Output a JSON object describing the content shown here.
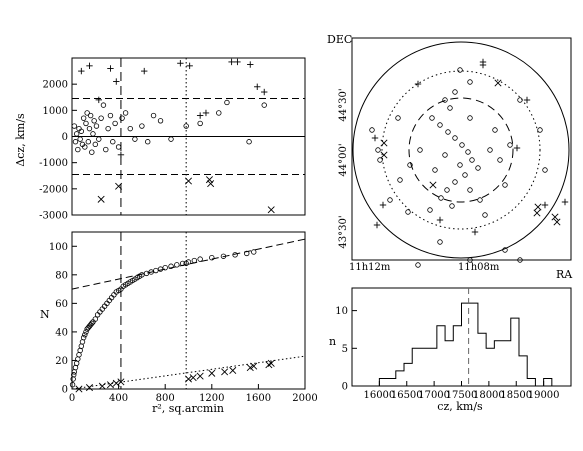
{
  "chart_data": [
    {
      "type": "scatter",
      "title": "",
      "xlabel": "",
      "ylabel": "Δcz, km/s",
      "xlim": [
        0,
        2000
      ],
      "ylim": [
        -3000,
        3000
      ],
      "yticks": [
        "2000",
        "1000",
        "0",
        "-1000",
        "-2000",
        "-3000"
      ],
      "hlines": {
        "solid": 0,
        "dashed": [
          1450,
          -1450
        ]
      },
      "vlines": {
        "dashed": 420,
        "dotted": 980
      },
      "series": [
        {
          "marker": "circle",
          "points": [
            [
              20,
              400
            ],
            [
              30,
              -200
            ],
            [
              40,
              100
            ],
            [
              50,
              -500
            ],
            [
              60,
              300
            ],
            [
              70,
              -100
            ],
            [
              80,
              200
            ],
            [
              90,
              -300
            ],
            [
              100,
              700
            ],
            [
              110,
              -400
            ],
            [
              120,
              500
            ],
            [
              130,
              900
            ],
            [
              140,
              -200
            ],
            [
              150,
              300
            ],
            [
              160,
              800
            ],
            [
              170,
              -600
            ],
            [
              180,
              100
            ],
            [
              190,
              600
            ],
            [
              200,
              -300
            ],
            [
              210,
              400
            ],
            [
              230,
              -100
            ],
            [
              250,
              700
            ],
            [
              270,
              1200
            ],
            [
              290,
              -500
            ],
            [
              310,
              300
            ],
            [
              330,
              800
            ],
            [
              350,
              -200
            ],
            [
              370,
              500
            ],
            [
              400,
              -400
            ],
            [
              430,
              700
            ],
            [
              460,
              900
            ],
            [
              500,
              300
            ],
            [
              540,
              -100
            ],
            [
              600,
              400
            ],
            [
              650,
              -200
            ],
            [
              700,
              800
            ],
            [
              760,
              600
            ],
            [
              850,
              -100
            ],
            [
              980,
              400
            ],
            [
              1100,
              500
            ],
            [
              1260,
              900
            ],
            [
              1330,
              1300
            ],
            [
              1520,
              -200
            ],
            [
              1650,
              1200
            ]
          ]
        },
        {
          "marker": "plus",
          "points": [
            [
              80,
              2500
            ],
            [
              150,
              2700
            ],
            [
              230,
              1400
            ],
            [
              330,
              2600
            ],
            [
              380,
              2100
            ],
            [
              420,
              -700
            ],
            [
              620,
              2500
            ],
            [
              930,
              2800
            ],
            [
              1010,
              2700
            ],
            [
              1100,
              800
            ],
            [
              1150,
              900
            ],
            [
              1370,
              2850
            ],
            [
              1420,
              2850
            ],
            [
              1530,
              2750
            ],
            [
              1590,
              1900
            ],
            [
              1650,
              1700
            ]
          ]
        },
        {
          "marker": "cross",
          "points": [
            [
              250,
              -2400
            ],
            [
              400,
              -1900
            ],
            [
              1000,
              -1700
            ],
            [
              1180,
              -1650
            ],
            [
              1190,
              -1800
            ],
            [
              1710,
              -2800
            ]
          ]
        }
      ]
    },
    {
      "type": "line",
      "title": "",
      "xlabel": "r², sq.arcmin",
      "ylabel": "N",
      "xlim": [
        0,
        2000
      ],
      "ylim": [
        0,
        110
      ],
      "xticks": [
        "0",
        "400",
        "800",
        "1200",
        "1600",
        "2000"
      ],
      "yticks": [
        "0",
        "20",
        "40",
        "60",
        "80",
        "100"
      ],
      "vlines": {
        "dashed": 420,
        "dotted": 980
      },
      "fit_lines": [
        {
          "style": "dashed",
          "x": [
            0,
            2000
          ],
          "y": [
            70,
            105
          ]
        },
        {
          "style": "dotted",
          "x": [
            0,
            2000
          ],
          "y": [
            0,
            23
          ]
        }
      ],
      "series": [
        {
          "marker": "circle",
          "points": [
            [
              5,
              3
            ],
            [
              10,
              7
            ],
            [
              15,
              10
            ],
            [
              20,
              12
            ],
            [
              30,
              15
            ],
            [
              40,
              18
            ],
            [
              50,
              21
            ],
            [
              60,
              24
            ],
            [
              70,
              27
            ],
            [
              80,
              30
            ],
            [
              90,
              33
            ],
            [
              100,
              36
            ],
            [
              110,
              38
            ],
            [
              120,
              40
            ],
            [
              130,
              42
            ],
            [
              140,
              43
            ],
            [
              150,
              44
            ],
            [
              160,
              45
            ],
            [
              170,
              46
            ],
            [
              180,
              47
            ],
            [
              200,
              49
            ],
            [
              220,
              52
            ],
            [
              240,
              54
            ],
            [
              260,
              56
            ],
            [
              280,
              58
            ],
            [
              300,
              60
            ],
            [
              320,
              62
            ],
            [
              340,
              64
            ],
            [
              360,
              66
            ],
            [
              380,
              68
            ],
            [
              400,
              69
            ],
            [
              420,
              70
            ],
            [
              440,
              72
            ],
            [
              460,
              73
            ],
            [
              480,
              74
            ],
            [
              500,
              75
            ],
            [
              520,
              76
            ],
            [
              540,
              77
            ],
            [
              560,
              78
            ],
            [
              580,
              79
            ],
            [
              600,
              80
            ],
            [
              640,
              81
            ],
            [
              680,
              82
            ],
            [
              720,
              83
            ],
            [
              760,
              84
            ],
            [
              800,
              85
            ],
            [
              850,
              86
            ],
            [
              900,
              87
            ],
            [
              950,
              88
            ],
            [
              980,
              88
            ],
            [
              1000,
              89
            ],
            [
              1050,
              90
            ],
            [
              1100,
              91
            ],
            [
              1200,
              92
            ],
            [
              1300,
              93
            ],
            [
              1400,
              94
            ],
            [
              1500,
              95
            ],
            [
              1560,
              96
            ]
          ]
        },
        {
          "marker": "cross",
          "points": [
            [
              60,
              0
            ],
            [
              150,
              1
            ],
            [
              260,
              2
            ],
            [
              330,
              3
            ],
            [
              380,
              4
            ],
            [
              420,
              5
            ],
            [
              1000,
              7
            ],
            [
              1040,
              8
            ],
            [
              1100,
              9
            ],
            [
              1200,
              11
            ],
            [
              1310,
              12
            ],
            [
              1380,
              13
            ],
            [
              1530,
              15
            ],
            [
              1560,
              16
            ],
            [
              1690,
              17
            ],
            [
              1710,
              18
            ]
          ]
        }
      ]
    },
    {
      "type": "scatter",
      "title": "",
      "xlabel": "RA",
      "ylabel": "DEC",
      "xticks": [
        "11h12m",
        "11h08m"
      ],
      "yticks": [
        "44°30'",
        "44°00'",
        "43°30'"
      ],
      "circles": [
        "solid",
        "dotted",
        "dashed"
      ],
      "series": [
        {
          "marker": "circle",
          "points": [
            [
              460,
              70
            ],
            [
              470,
              82
            ],
            [
              455,
              92
            ],
            [
              445,
              100
            ],
            [
              450,
              108
            ],
            [
              432,
              118
            ],
            [
              440,
              125
            ],
            [
              448,
              132
            ],
            [
              455,
              138
            ],
            [
              462,
              145
            ],
            [
              468,
              152
            ],
            [
              472,
              160
            ],
            [
              478,
              168
            ],
            [
              465,
              175
            ],
            [
              455,
              182
            ],
            [
              447,
              190
            ],
            [
              441,
              198
            ],
            [
              452,
              206
            ],
            [
              460,
              165
            ],
            [
              490,
              150
            ],
            [
              500,
              160
            ],
            [
              420,
              150
            ],
            [
              410,
              165
            ],
            [
              400,
              180
            ],
            [
              390,
              200
            ],
            [
              430,
              210
            ],
            [
              480,
              200
            ],
            [
              505,
              185
            ],
            [
              495,
              130
            ],
            [
              470,
              118
            ],
            [
              445,
              155
            ],
            [
              435,
              170
            ],
            [
              470,
              190
            ],
            [
              485,
              215
            ],
            [
              510,
              145
            ],
            [
              520,
              100
            ],
            [
              540,
              130
            ],
            [
              545,
              170
            ],
            [
              380,
              160
            ],
            [
              372,
              130
            ],
            [
              398,
              118
            ],
            [
              440,
              242
            ],
            [
              505,
              250
            ],
            [
              520,
              260
            ],
            [
              470,
              260
            ],
            [
              418,
              265
            ],
            [
              408,
              212
            ],
            [
              378,
              150
            ]
          ]
        },
        {
          "marker": "plus",
          "points": [
            [
              483,
              65
            ],
            [
              483,
              62
            ],
            [
              418,
              84
            ],
            [
              375,
              138
            ],
            [
              377,
              225
            ],
            [
              383,
              205
            ],
            [
              527,
              100
            ],
            [
              517,
              148
            ],
            [
              440,
              220
            ],
            [
              475,
              232
            ],
            [
              545,
              205
            ],
            [
              565,
              202
            ]
          ]
        },
        {
          "marker": "cross",
          "points": [
            [
              384,
              143
            ],
            [
              384,
              155
            ],
            [
              433,
              185
            ],
            [
              498,
              83
            ],
            [
              537,
              213
            ],
            [
              555,
              217
            ],
            [
              557,
              222
            ],
            [
              538,
              207
            ]
          ]
        }
      ]
    },
    {
      "type": "bar",
      "title": "",
      "xlabel": "cz, km/s",
      "ylabel": "n",
      "xlim": [
        15500,
        19500
      ],
      "ylim": [
        0,
        13
      ],
      "xticks": [
        "16000",
        "16500",
        "17000",
        "17500",
        "18000",
        "18500",
        "19000"
      ],
      "yticks": [
        "0",
        "5",
        "10"
      ],
      "vline_dashed": 17630,
      "bin_edges": [
        16000,
        16150,
        16300,
        16450,
        16600,
        16750,
        16900,
        17050,
        17200,
        17350,
        17500,
        17650,
        17800,
        17950,
        18100,
        18250,
        18400,
        18550,
        18700,
        18850,
        19000,
        19150
      ],
      "values": [
        1,
        1,
        2,
        3,
        5,
        5,
        5,
        8,
        6,
        8,
        11,
        11,
        7,
        5,
        6,
        6,
        9,
        4,
        1,
        0,
        1
      ]
    }
  ],
  "axes_labels": {
    "p1_ylabel": "Δcz, km/s",
    "p2_xlabel": "r², sq.arcmin",
    "p2_ylabel": "N",
    "p3_dec": "DEC",
    "p3_ra": "RA",
    "p3_ra1": "11h12m",
    "p3_ra2": "11h08m",
    "p4_xlabel": "cz, km/s",
    "p4_ylabel": "n"
  },
  "shared_ticks": {
    "p1_y": [
      "2000",
      "1000",
      "0",
      "-1000",
      "-2000",
      "-3000"
    ],
    "p2_y": [
      "0",
      "20",
      "40",
      "60",
      "80",
      "100"
    ],
    "p2_x": [
      "0",
      "400",
      "800",
      "1200",
      "1600",
      "2000"
    ],
    "p3_dec": [
      "44°30'",
      "44°00'",
      "43°30'"
    ],
    "p4_x": [
      "16000",
      "16500",
      "17000",
      "17500",
      "18000",
      "18500",
      "19000"
    ],
    "p4_y": [
      "0",
      "5",
      "10"
    ]
  }
}
